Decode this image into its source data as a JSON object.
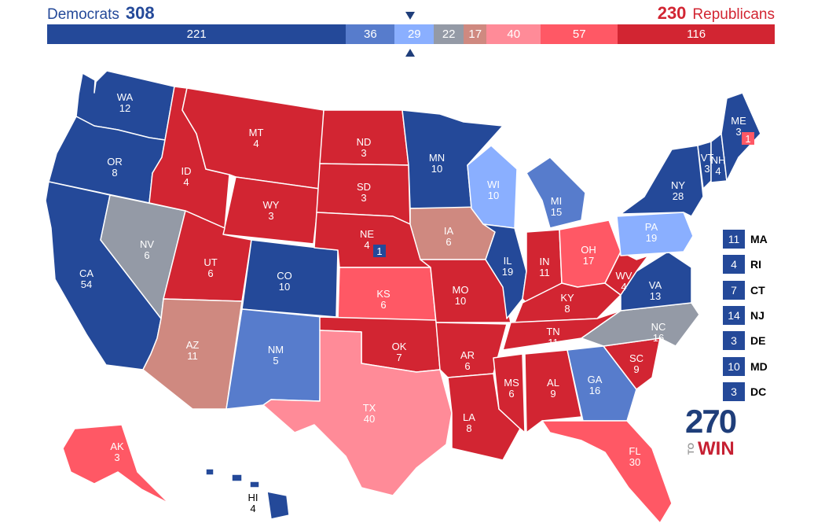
{
  "header": {
    "dem_label": "Democrats",
    "dem_total": "308",
    "rep_total": "230",
    "rep_label": "Republicans"
  },
  "colors": {
    "solid_d": "#244999",
    "likely_d": "#577ccc",
    "lean_d": "#8aafff",
    "tossup": "#949aa6",
    "tilt_r": "#cf8980",
    "lean_r": "#ff8b98",
    "likely_r": "#ff5865",
    "solid_r": "#d22532"
  },
  "bar": [
    {
      "value": "221",
      "rating": "solid_d",
      "units": 221
    },
    {
      "value": "36",
      "rating": "likely_d",
      "units": 36
    },
    {
      "value": "29",
      "rating": "lean_d",
      "units": 29
    },
    {
      "value": "22",
      "rating": "tossup",
      "units": 22
    },
    {
      "value": "17",
      "rating": "tilt_r",
      "units": 17
    },
    {
      "value": "40",
      "rating": "lean_r",
      "units": 40
    },
    {
      "value": "57",
      "rating": "likely_r",
      "units": 57
    },
    {
      "value": "116",
      "rating": "solid_r",
      "units": 116
    }
  ],
  "states": [
    {
      "abbr": "WA",
      "ev": "12",
      "rating": "solid_d"
    },
    {
      "abbr": "OR",
      "ev": "8",
      "rating": "solid_d"
    },
    {
      "abbr": "CA",
      "ev": "54",
      "rating": "solid_d"
    },
    {
      "abbr": "NV",
      "ev": "6",
      "rating": "tossup"
    },
    {
      "abbr": "ID",
      "ev": "4",
      "rating": "solid_r"
    },
    {
      "abbr": "MT",
      "ev": "4",
      "rating": "solid_r"
    },
    {
      "abbr": "WY",
      "ev": "3",
      "rating": "solid_r"
    },
    {
      "abbr": "UT",
      "ev": "6",
      "rating": "solid_r"
    },
    {
      "abbr": "AZ",
      "ev": "11",
      "rating": "tilt_r"
    },
    {
      "abbr": "CO",
      "ev": "10",
      "rating": "solid_d"
    },
    {
      "abbr": "NM",
      "ev": "5",
      "rating": "likely_d"
    },
    {
      "abbr": "ND",
      "ev": "3",
      "rating": "solid_r"
    },
    {
      "abbr": "SD",
      "ev": "3",
      "rating": "solid_r"
    },
    {
      "abbr": "NE",
      "ev": "4",
      "rating": "solid_r"
    },
    {
      "abbr": "KS",
      "ev": "6",
      "rating": "likely_r"
    },
    {
      "abbr": "OK",
      "ev": "7",
      "rating": "solid_r"
    },
    {
      "abbr": "TX",
      "ev": "40",
      "rating": "lean_r"
    },
    {
      "abbr": "MN",
      "ev": "10",
      "rating": "solid_d"
    },
    {
      "abbr": "IA",
      "ev": "6",
      "rating": "tilt_r"
    },
    {
      "abbr": "MO",
      "ev": "10",
      "rating": "solid_r"
    },
    {
      "abbr": "AR",
      "ev": "6",
      "rating": "solid_r"
    },
    {
      "abbr": "LA",
      "ev": "8",
      "rating": "solid_r"
    },
    {
      "abbr": "WI",
      "ev": "10",
      "rating": "lean_d"
    },
    {
      "abbr": "IL",
      "ev": "19",
      "rating": "solid_d"
    },
    {
      "abbr": "MI",
      "ev": "15",
      "rating": "likely_d"
    },
    {
      "abbr": "IN",
      "ev": "11",
      "rating": "solid_r"
    },
    {
      "abbr": "OH",
      "ev": "17",
      "rating": "likely_r"
    },
    {
      "abbr": "KY",
      "ev": "8",
      "rating": "solid_r"
    },
    {
      "abbr": "TN",
      "ev": "11",
      "rating": "solid_r"
    },
    {
      "abbr": "MS",
      "ev": "6",
      "rating": "solid_r"
    },
    {
      "abbr": "AL",
      "ev": "9",
      "rating": "solid_r"
    },
    {
      "abbr": "GA",
      "ev": "16",
      "rating": "likely_d"
    },
    {
      "abbr": "FL",
      "ev": "30",
      "rating": "likely_r"
    },
    {
      "abbr": "SC",
      "ev": "9",
      "rating": "solid_r"
    },
    {
      "abbr": "NC",
      "ev": "16",
      "rating": "tossup"
    },
    {
      "abbr": "VA",
      "ev": "13",
      "rating": "solid_d"
    },
    {
      "abbr": "WV",
      "ev": "4",
      "rating": "solid_r"
    },
    {
      "abbr": "PA",
      "ev": "19",
      "rating": "lean_d"
    },
    {
      "abbr": "NY",
      "ev": "28",
      "rating": "solid_d"
    },
    {
      "abbr": "VT",
      "ev": "3",
      "rating": "solid_d"
    },
    {
      "abbr": "NH",
      "ev": "4",
      "rating": "solid_d"
    },
    {
      "abbr": "ME",
      "ev": "3",
      "rating": "solid_d"
    },
    {
      "abbr": "AK",
      "ev": "3",
      "rating": "likely_r"
    },
    {
      "abbr": "HI",
      "ev": "4",
      "rating": "solid_d"
    }
  ],
  "split_districts": {
    "ne": {
      "value": "1",
      "rating": "solid_d"
    },
    "me": {
      "value": "1",
      "rating": "likely_r"
    }
  },
  "small_states": [
    {
      "abbr": "MA",
      "ev": "11",
      "rating": "solid_d"
    },
    {
      "abbr": "RI",
      "ev": "4",
      "rating": "solid_d"
    },
    {
      "abbr": "CT",
      "ev": "7",
      "rating": "solid_d"
    },
    {
      "abbr": "NJ",
      "ev": "14",
      "rating": "solid_d"
    },
    {
      "abbr": "DE",
      "ev": "3",
      "rating": "solid_d"
    },
    {
      "abbr": "MD",
      "ev": "10",
      "rating": "solid_d"
    },
    {
      "abbr": "DC",
      "ev": "3",
      "rating": "solid_d"
    }
  ],
  "logo": {
    "number": "270",
    "to": "TO",
    "win": "WIN"
  }
}
